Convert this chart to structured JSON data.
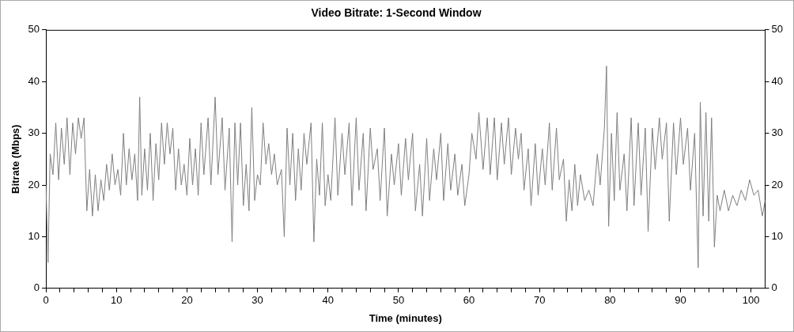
{
  "chart_data": {
    "type": "line",
    "title": "Video Bitrate: 1-Second Window",
    "xlabel": "Time (minutes)",
    "ylabel": "Bitrate (Mbps)",
    "x": [
      0,
      0.3,
      0.6,
      1,
      1.4,
      1.8,
      2.2,
      2.6,
      3,
      3.4,
      3.8,
      4.2,
      4.6,
      5,
      5.4,
      5.8,
      6.2,
      6.6,
      7,
      7.4,
      7.8,
      8.2,
      8.6,
      9,
      9.4,
      9.8,
      10.2,
      10.6,
      11,
      11.4,
      11.8,
      12.2,
      12.6,
      13,
      13.3,
      13.6,
      14,
      14.4,
      14.8,
      15.2,
      15.6,
      16,
      16.4,
      16.8,
      17.2,
      17.6,
      18,
      18.4,
      18.8,
      19.2,
      19.6,
      20,
      20.4,
      20.8,
      21.2,
      21.6,
      22,
      22.4,
      23,
      23.4,
      24,
      24.4,
      25,
      25.4,
      26,
      26.4,
      26.8,
      27.2,
      27.6,
      28,
      28.4,
      28.8,
      29.2,
      29.6,
      30,
      30.4,
      30.8,
      31.2,
      31.6,
      32,
      32.4,
      32.8,
      33.4,
      33.8,
      34.2,
      34.6,
      35,
      35.4,
      35.8,
      36.2,
      36.6,
      37,
      37.6,
      38,
      38.4,
      38.8,
      39.2,
      39.6,
      40,
      40.4,
      41,
      41.4,
      42,
      42.4,
      43,
      43.4,
      44,
      44.4,
      45,
      45.4,
      46,
      46.4,
      47,
      47.4,
      48,
      48.4,
      49,
      49.4,
      50,
      50.4,
      51,
      51.4,
      52,
      52.4,
      53,
      53.4,
      54,
      54.4,
      55,
      55.4,
      56,
      56.4,
      57,
      57.4,
      58,
      58.4,
      59,
      59.4,
      60,
      60.4,
      61,
      61.4,
      62,
      62.6,
      63,
      63.6,
      64,
      64.6,
      65,
      65.6,
      66,
      66.6,
      67,
      67.4,
      67.8,
      68.4,
      68.8,
      69.4,
      69.8,
      70.4,
      70.8,
      71.4,
      71.8,
      72.4,
      72.8,
      73.4,
      73.8,
      74.2,
      74.6,
      75,
      75.4,
      75.8,
      76.4,
      77,
      77.6,
      78.2,
      78.6,
      79.2,
      79.5,
      79.8,
      80.2,
      80.6,
      81,
      81.4,
      82,
      82.4,
      83,
      83.4,
      84,
      84.4,
      85,
      85.4,
      86,
      86.4,
      87,
      87.4,
      88,
      88.4,
      89,
      89.4,
      90,
      90.4,
      91,
      91.4,
      92,
      92.5,
      92.8,
      93.2,
      93.6,
      94,
      94.4,
      94.8,
      95.2,
      95.6,
      96.2,
      96.8,
      97.4,
      98,
      98.6,
      99.2,
      99.8,
      100.4,
      101,
      101.6,
      102
    ],
    "series": [
      {
        "color": "#7f7f7f",
        "values": [
          20,
          5,
          26,
          22,
          32,
          21,
          31,
          24,
          33,
          22,
          32,
          26,
          33,
          29,
          33,
          15,
          23,
          14,
          22,
          15,
          21,
          17,
          24,
          19,
          26,
          20,
          23,
          18,
          30,
          20,
          27,
          21,
          26,
          17,
          37,
          18,
          27,
          19,
          30,
          17,
          28,
          21,
          32,
          24,
          32,
          26,
          31,
          19,
          27,
          20,
          24,
          18,
          29,
          20,
          27,
          18,
          32,
          22,
          33,
          20,
          37,
          22,
          33,
          19,
          31,
          9,
          32,
          20,
          32,
          16,
          24,
          15,
          35,
          17,
          22,
          20,
          32,
          24,
          28,
          22,
          26,
          20,
          23,
          10,
          31,
          20,
          30,
          17,
          27,
          19,
          30,
          24,
          32,
          9,
          25,
          18,
          32,
          16,
          22,
          17,
          33,
          18,
          30,
          22,
          32,
          16,
          33,
          19,
          30,
          15,
          31,
          23,
          27,
          17,
          31,
          14,
          26,
          20,
          28,
          18,
          29,
          21,
          30,
          15,
          24,
          14,
          29,
          17,
          27,
          21,
          30,
          17,
          28,
          19,
          26,
          18,
          24,
          16,
          22,
          30,
          25,
          34,
          23,
          33,
          22,
          33,
          21,
          32,
          24,
          33,
          22,
          31,
          25,
          30,
          19,
          27,
          16,
          28,
          18,
          27,
          20,
          32,
          19,
          31,
          21,
          25,
          13,
          21,
          15,
          24,
          16,
          22,
          17,
          19,
          16,
          26,
          20,
          31,
          43,
          12,
          30,
          17,
          34,
          19,
          26,
          15,
          33,
          16,
          32,
          18,
          31,
          11,
          31,
          23,
          33,
          25,
          32,
          13,
          32,
          22,
          33,
          24,
          31,
          19,
          30,
          4,
          36,
          14,
          34,
          13,
          33,
          8,
          18,
          15,
          19,
          15,
          18,
          16,
          19,
          17,
          21,
          18,
          19,
          14,
          17
        ]
      }
    ],
    "xlim": [
      0,
      102
    ],
    "xticks": [
      0,
      {
        "value": 2,
        "label": null
      },
      {
        "value": 4,
        "label": null
      },
      {
        "value": 6,
        "label": null
      },
      {
        "value": 8,
        "label": null
      },
      10,
      {
        "value": 12,
        "label": null
      },
      {
        "value": 14,
        "label": null
      },
      {
        "value": 16,
        "label": null
      },
      {
        "value": 18,
        "label": null
      },
      20,
      {
        "value": 22,
        "label": null
      },
      {
        "value": 24,
        "label": null
      },
      {
        "value": 26,
        "label": null
      },
      {
        "value": 28,
        "label": null
      },
      30,
      {
        "value": 32,
        "label": null
      },
      {
        "value": 34,
        "label": null
      },
      {
        "value": 36,
        "label": null
      },
      {
        "value": 38,
        "label": null
      },
      40,
      {
        "value": 42,
        "label": null
      },
      {
        "value": 44,
        "label": null
      },
      {
        "value": 46,
        "label": null
      },
      {
        "value": 48,
        "label": null
      },
      50,
      {
        "value": 52,
        "label": null
      },
      {
        "value": 54,
        "label": null
      },
      {
        "value": 56,
        "label": null
      },
      {
        "value": 58,
        "label": null
      },
      60,
      {
        "value": 62,
        "label": null
      },
      {
        "value": 64,
        "label": null
      },
      {
        "value": 66,
        "label": null
      },
      {
        "value": 68,
        "label": null
      },
      70,
      {
        "value": 72,
        "label": null
      },
      {
        "value": 74,
        "label": null
      },
      {
        "value": 76,
        "label": null
      },
      {
        "value": 78,
        "label": null
      },
      80,
      {
        "value": 82,
        "label": null
      },
      {
        "value": 84,
        "label": null
      },
      {
        "value": 86,
        "label": null
      },
      {
        "value": 88,
        "label": null
      },
      90,
      {
        "value": 92,
        "label": null
      },
      {
        "value": 94,
        "label": null
      },
      {
        "value": 96,
        "label": null
      },
      {
        "value": 98,
        "label": null
      },
      100
    ],
    "ylim": [
      0,
      50
    ],
    "yticks": [
      0,
      10,
      20,
      30,
      40,
      50
    ],
    "y2lim": [
      0,
      50
    ],
    "y2ticks": [
      0,
      10,
      20,
      30,
      40,
      50
    ],
    "grid": false,
    "legend": false,
    "marker": "none",
    "line_style": "solid"
  }
}
